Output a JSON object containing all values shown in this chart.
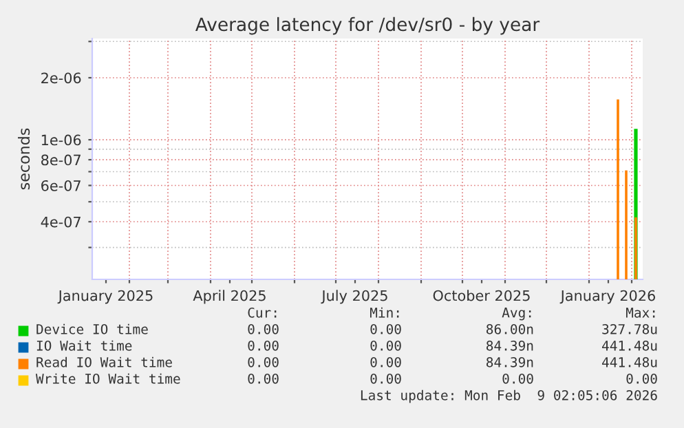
{
  "chart_data": {
    "type": "bar",
    "title": "Average latency for /dev/sr0 - by year",
    "ylabel": "seconds",
    "x": [
      "2026-01-22",
      "2026-01-28",
      "2026-02-04"
    ],
    "series": [
      {
        "name": "Device IO time",
        "color": "#00cc00",
        "values": [
          null,
          null,
          1.13e-06
        ]
      },
      {
        "name": "IO Wait time",
        "color": "#0066b3",
        "values": [
          null,
          null,
          null
        ]
      },
      {
        "name": "Read IO Wait time",
        "color": "#ff8000",
        "values": [
          1.57e-06,
          7.1e-07,
          4.2e-07
        ]
      },
      {
        "name": "Write IO Wait time",
        "color": "#ffcc00",
        "values": [
          null,
          null,
          null
        ]
      }
    ],
    "log": "y",
    "ylim": [
      2.1e-07,
      3.1e-06
    ],
    "yticks": [
      {
        "value": 3e-07,
        "label": null
      },
      {
        "value": 4e-07,
        "label": "4e-07"
      },
      {
        "value": 5e-07,
        "label": null
      },
      {
        "value": 6e-07,
        "label": "6e-07"
      },
      {
        "value": 7e-07,
        "label": null
      },
      {
        "value": 8e-07,
        "label": "8e-07"
      },
      {
        "value": 9e-07,
        "label": null
      },
      {
        "value": 1e-06,
        "label": "1e-06"
      },
      {
        "value": 2e-06,
        "label": "2e-06"
      },
      {
        "value": 3e-06,
        "label": null
      }
    ],
    "xlim": [
      "2025-01-05",
      "2026-02-09"
    ],
    "xticks": [
      {
        "value": "2025-01-15",
        "label": "January 2025"
      },
      {
        "value": "2025-04-15",
        "label": "April 2025"
      },
      {
        "value": "2025-07-15",
        "label": "July 2025"
      },
      {
        "value": "2025-10-15",
        "label": "October 2025"
      },
      {
        "value": "2026-01-15",
        "label": "January 2026"
      },
      {
        "value": "2025-02-01",
        "label": null
      },
      {
        "value": "2025-03-01",
        "label": null
      },
      {
        "value": "2025-04-01",
        "label": null
      },
      {
        "value": "2025-05-01",
        "label": null
      },
      {
        "value": "2025-06-01",
        "label": null
      },
      {
        "value": "2025-07-01",
        "label": null
      },
      {
        "value": "2025-08-01",
        "label": null
      },
      {
        "value": "2025-09-01",
        "label": null
      },
      {
        "value": "2025-10-01",
        "label": null
      },
      {
        "value": "2025-11-01",
        "label": null
      },
      {
        "value": "2025-12-01",
        "label": null
      },
      {
        "value": "2026-01-01",
        "label": null
      },
      {
        "value": "2026-02-01",
        "label": null
      }
    ],
    "grid": true,
    "legend": "bottom",
    "annotations": [
      "Cur:",
      "Min:",
      "Avg:",
      "Max:",
      "0.00",
      "0.00",
      "86.00n",
      "327.78u",
      "0.00",
      "0.00",
      "84.39n",
      "441.48u",
      "0.00",
      "0.00",
      "84.39n",
      "441.48u",
      "0.00",
      "0.00",
      "0.00",
      "0.00",
      "Last update: Mon Feb  9 02:05:06 2026"
    ]
  }
}
